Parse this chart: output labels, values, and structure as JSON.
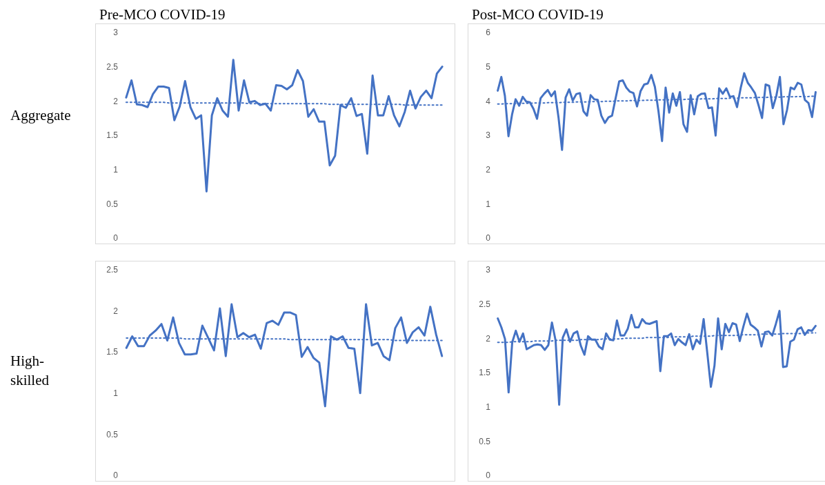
{
  "chart_data": [
    {
      "type": "line",
      "title": "Pre-MCO COVID-19",
      "ylabel": "Aggregate",
      "categories": [
        null,
        null,
        null,
        null,
        null,
        null,
        null,
        null,
        null,
        null,
        null,
        null,
        null,
        null,
        null,
        null,
        null,
        null,
        null,
        null,
        null,
        null,
        null,
        null,
        null,
        null,
        null,
        null,
        null,
        null,
        null,
        null,
        null,
        null,
        null,
        null,
        null,
        null,
        null,
        null,
        null,
        null,
        null,
        null,
        null,
        null,
        null,
        null,
        null,
        null,
        null,
        null,
        null,
        null,
        null,
        null,
        null,
        null,
        null,
        null
      ],
      "ylim": [
        0,
        3
      ],
      "yticks": [
        0,
        0.5,
        1,
        1.5,
        2,
        2.5,
        3
      ],
      "tick_labels": "y",
      "marker": "none",
      "series": [
        {
          "color": "#4472c4",
          "line_style": "solid",
          "values": [
            2.05,
            2.3,
            1.95,
            1.94,
            1.91,
            2.1,
            2.21,
            2.21,
            2.19,
            1.72,
            1.92,
            2.29,
            1.91,
            1.74,
            1.79,
            0.68,
            1.79,
            2.04,
            1.86,
            1.77,
            2.6,
            1.86,
            2.3,
            1.98,
            2.0,
            1.94,
            1.96,
            1.86,
            2.23,
            2.22,
            2.17,
            2.23,
            2.45,
            2.29,
            1.77,
            1.88,
            1.7,
            1.7,
            1.06,
            1.2,
            1.94,
            1.9,
            2.04,
            1.78,
            1.81,
            1.23,
            2.37,
            1.79,
            1.79,
            2.07,
            1.79,
            1.63,
            1.84,
            2.15,
            1.89,
            2.06,
            2.15,
            2.04,
            2.4,
            2.5
          ]
        },
        {
          "type": "line",
          "color": "#4472c4",
          "line_style": "dotted",
          "values": [
            1.98,
            1.98,
            1.98,
            1.98,
            1.98,
            1.98,
            1.98,
            1.98,
            1.97,
            1.97,
            1.97,
            1.97,
            1.97,
            1.97,
            1.97,
            1.97,
            1.97,
            1.97,
            1.97,
            1.97,
            1.97,
            1.97,
            1.97,
            1.96,
            1.96,
            1.96,
            1.96,
            1.96,
            1.96,
            1.96,
            1.96,
            1.96,
            1.96,
            1.96,
            1.96,
            1.96,
            1.96,
            1.96,
            1.95,
            1.95,
            1.95,
            1.95,
            1.95,
            1.95,
            1.95,
            1.95,
            1.95,
            1.95,
            1.95,
            1.95,
            1.95,
            1.95,
            1.94,
            1.94,
            1.94,
            1.94,
            1.94,
            1.94,
            1.94,
            1.94
          ]
        }
      ]
    },
    {
      "type": "line",
      "title": "Post-MCO COVID-19",
      "categories": [
        null,
        null,
        null,
        null,
        null,
        null,
        null,
        null,
        null,
        null,
        null,
        null,
        null,
        null,
        null,
        null,
        null,
        null,
        null,
        null,
        null,
        null,
        null,
        null,
        null,
        null,
        null,
        null,
        null,
        null,
        null,
        null,
        null,
        null,
        null,
        null,
        null,
        null,
        null,
        null,
        null,
        null,
        null,
        null,
        null,
        null,
        null,
        null,
        null,
        null,
        null,
        null,
        null,
        null,
        null,
        null,
        null,
        null,
        null,
        null,
        null,
        null,
        null,
        null,
        null,
        null,
        null,
        null,
        null,
        null,
        null,
        null,
        null,
        null,
        null,
        null,
        null,
        null,
        null,
        null,
        null,
        null,
        null,
        null,
        null,
        null,
        null,
        null,
        null,
        null
      ],
      "ylim": [
        0,
        6
      ],
      "yticks": [
        0,
        1,
        2,
        3,
        4,
        5,
        6
      ],
      "tick_labels": "y",
      "marker": "none",
      "series": [
        {
          "color": "#4472c4",
          "line_style": "solid",
          "values": [
            4.3,
            4.7,
            4.15,
            2.97,
            3.6,
            4.05,
            3.86,
            4.12,
            3.98,
            3.96,
            3.77,
            3.48,
            4.08,
            4.21,
            4.32,
            4.14,
            4.28,
            3.53,
            2.57,
            4.1,
            4.34,
            4.01,
            4.2,
            4.23,
            3.7,
            3.57,
            4.17,
            4.05,
            4.03,
            3.57,
            3.36,
            3.52,
            3.57,
            4.08,
            4.57,
            4.6,
            4.39,
            4.27,
            4.23,
            3.84,
            4.29,
            4.48,
            4.51,
            4.76,
            4.41,
            3.7,
            2.83,
            4.39,
            3.66,
            4.22,
            3.86,
            4.26,
            3.32,
            3.1,
            4.17,
            3.61,
            4.14,
            4.21,
            4.22,
            3.79,
            3.81,
            2.99,
            4.37,
            4.21,
            4.37,
            4.12,
            4.14,
            3.82,
            4.37,
            4.81,
            4.53,
            4.39,
            4.23,
            3.88,
            3.5,
            4.48,
            4.44,
            3.79,
            4.15,
            4.7,
            3.32,
            3.74,
            4.39,
            4.34,
            4.53,
            4.48,
            4.03,
            3.94,
            3.53,
            4.26
          ]
        },
        {
          "type": "line",
          "color": "#4472c4",
          "line_style": "dotted",
          "values": [
            3.91,
            3.91,
            3.92,
            3.92,
            3.92,
            3.92,
            3.93,
            3.93,
            3.93,
            3.93,
            3.94,
            3.94,
            3.94,
            3.94,
            3.95,
            3.95,
            3.95,
            3.95,
            3.96,
            3.96,
            3.96,
            3.96,
            3.97,
            3.97,
            3.97,
            3.97,
            3.98,
            3.98,
            3.98,
            3.98,
            3.99,
            3.99,
            3.99,
            4.0,
            4.0,
            4.0,
            4.0,
            4.01,
            4.01,
            4.01,
            4.01,
            4.02,
            4.02,
            4.02,
            4.02,
            4.03,
            4.03,
            4.03,
            4.03,
            4.04,
            4.04,
            4.04,
            4.04,
            4.05,
            4.05,
            4.05,
            4.05,
            4.06,
            4.06,
            4.06,
            4.06,
            4.07,
            4.07,
            4.07,
            4.07,
            4.08,
            4.08,
            4.08,
            4.09,
            4.09,
            4.09,
            4.09,
            4.1,
            4.1,
            4.1,
            4.1,
            4.11,
            4.11,
            4.11,
            4.11,
            4.12,
            4.12,
            4.12,
            4.12,
            4.13,
            4.13,
            4.13,
            4.13,
            4.14,
            4.14
          ]
        }
      ]
    },
    {
      "type": "line",
      "ylabel": "High-skilled",
      "categories": [
        null,
        null,
        null,
        null,
        null,
        null,
        null,
        null,
        null,
        null,
        null,
        null,
        null,
        null,
        null,
        null,
        null,
        null,
        null,
        null,
        null,
        null,
        null,
        null,
        null,
        null,
        null,
        null,
        null,
        null,
        null,
        null,
        null,
        null,
        null,
        null,
        null,
        null,
        null,
        null,
        null,
        null,
        null,
        null,
        null,
        null,
        null,
        null,
        null,
        null,
        null,
        null,
        null,
        null,
        null
      ],
      "ylim": [
        0,
        2.5
      ],
      "yticks": [
        0,
        0.5,
        1,
        1.5,
        2,
        2.5
      ],
      "tick_labels": "y",
      "marker": "none",
      "series": [
        {
          "color": "#4472c4",
          "line_style": "solid",
          "values": [
            1.55,
            1.69,
            1.57,
            1.57,
            1.7,
            1.76,
            1.84,
            1.64,
            1.92,
            1.61,
            1.47,
            1.47,
            1.48,
            1.82,
            1.67,
            1.52,
            2.03,
            1.45,
            2.08,
            1.68,
            1.73,
            1.68,
            1.71,
            1.54,
            1.85,
            1.88,
            1.83,
            1.98,
            1.98,
            1.95,
            1.44,
            1.56,
            1.43,
            1.37,
            0.84,
            1.69,
            1.65,
            1.69,
            1.55,
            1.54,
            1.0,
            2.08,
            1.58,
            1.61,
            1.45,
            1.4,
            1.79,
            1.92,
            1.61,
            1.74,
            1.8,
            1.7,
            2.05,
            1.71,
            1.45
          ]
        },
        {
          "type": "line",
          "color": "#4472c4",
          "line_style": "dotted",
          "values": [
            1.67,
            1.67,
            1.67,
            1.67,
            1.67,
            1.67,
            1.67,
            1.67,
            1.67,
            1.67,
            1.66,
            1.66,
            1.66,
            1.66,
            1.66,
            1.66,
            1.66,
            1.66,
            1.66,
            1.66,
            1.66,
            1.66,
            1.66,
            1.66,
            1.66,
            1.66,
            1.66,
            1.66,
            1.65,
            1.65,
            1.65,
            1.65,
            1.65,
            1.65,
            1.65,
            1.65,
            1.65,
            1.65,
            1.65,
            1.65,
            1.65,
            1.65,
            1.65,
            1.65,
            1.65,
            1.65,
            1.64,
            1.64,
            1.64,
            1.64,
            1.64,
            1.64,
            1.64,
            1.64,
            1.64
          ]
        }
      ]
    },
    {
      "type": "line",
      "categories": [
        null,
        null,
        null,
        null,
        null,
        null,
        null,
        null,
        null,
        null,
        null,
        null,
        null,
        null,
        null,
        null,
        null,
        null,
        null,
        null,
        null,
        null,
        null,
        null,
        null,
        null,
        null,
        null,
        null,
        null,
        null,
        null,
        null,
        null,
        null,
        null,
        null,
        null,
        null,
        null,
        null,
        null,
        null,
        null,
        null,
        null,
        null,
        null,
        null,
        null,
        null,
        null,
        null,
        null,
        null,
        null,
        null,
        null,
        null,
        null,
        null,
        null,
        null,
        null,
        null,
        null,
        null,
        null,
        null,
        null,
        null,
        null,
        null,
        null,
        null,
        null,
        null,
        null,
        null,
        null,
        null,
        null,
        null,
        null,
        null,
        null,
        null,
        null,
        null
      ],
      "ylim": [
        0,
        3
      ],
      "yticks": [
        0,
        0.5,
        1,
        1.5,
        2,
        2.5,
        3
      ],
      "tick_labels": "y",
      "marker": "none",
      "series": [
        {
          "color": "#4472c4",
          "line_style": "solid",
          "values": [
            2.29,
            2.16,
            1.99,
            1.21,
            1.94,
            2.11,
            1.95,
            2.07,
            1.84,
            1.87,
            1.9,
            1.91,
            1.9,
            1.83,
            1.9,
            2.23,
            1.97,
            1.03,
            2.01,
            2.13,
            1.95,
            2.07,
            2.1,
            1.89,
            1.76,
            2.03,
            1.98,
            1.98,
            1.88,
            1.84,
            2.07,
            1.98,
            1.97,
            2.26,
            2.04,
            2.04,
            2.14,
            2.34,
            2.16,
            2.16,
            2.28,
            2.22,
            2.21,
            2.23,
            2.25,
            1.52,
            2.03,
            2.03,
            2.07,
            1.9,
            1.99,
            1.94,
            1.9,
            2.06,
            1.84,
            1.98,
            1.92,
            2.28,
            1.79,
            1.29,
            1.6,
            2.29,
            1.84,
            2.21,
            2.09,
            2.22,
            2.2,
            1.96,
            2.17,
            2.36,
            2.2,
            2.16,
            2.11,
            1.88,
            2.09,
            2.1,
            2.04,
            2.21,
            2.4,
            1.58,
            1.59,
            1.95,
            1.98,
            2.13,
            2.16,
            2.05,
            2.12,
            2.11,
            2.18
          ]
        },
        {
          "type": "line",
          "color": "#4472c4",
          "line_style": "dotted",
          "values": [
            1.94,
            1.94,
            1.94,
            1.94,
            1.95,
            1.95,
            1.95,
            1.95,
            1.95,
            1.95,
            1.96,
            1.96,
            1.96,
            1.96,
            1.96,
            1.96,
            1.97,
            1.97,
            1.97,
            1.97,
            1.97,
            1.97,
            1.97,
            1.98,
            1.98,
            1.98,
            1.98,
            1.98,
            1.98,
            1.99,
            1.99,
            1.99,
            1.99,
            1.99,
            1.99,
            2.0,
            2.0,
            2.0,
            2.0,
            2.0,
            2.0,
            2.01,
            2.01,
            2.01,
            2.01,
            2.01,
            2.01,
            2.01,
            2.02,
            2.02,
            2.02,
            2.02,
            2.02,
            2.02,
            2.03,
            2.03,
            2.03,
            2.03,
            2.03,
            2.03,
            2.04,
            2.04,
            2.04,
            2.04,
            2.04,
            2.04,
            2.04,
            2.05,
            2.05,
            2.05,
            2.05,
            2.05,
            2.05,
            2.06,
            2.06,
            2.06,
            2.06,
            2.06,
            2.06,
            2.07,
            2.07,
            2.07,
            2.07,
            2.07,
            2.07,
            2.08,
            2.08,
            2.08,
            2.08
          ]
        }
      ]
    }
  ]
}
